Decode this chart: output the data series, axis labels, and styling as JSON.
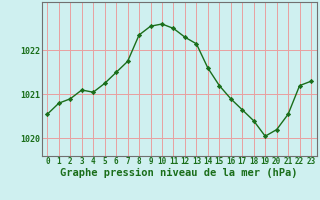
{
  "x": [
    0,
    1,
    2,
    3,
    4,
    5,
    6,
    7,
    8,
    9,
    10,
    11,
    12,
    13,
    14,
    15,
    16,
    17,
    18,
    19,
    20,
    21,
    22,
    23
  ],
  "y": [
    1020.55,
    1020.8,
    1020.9,
    1021.1,
    1021.05,
    1021.25,
    1021.5,
    1021.75,
    1022.35,
    1022.55,
    1022.6,
    1022.5,
    1022.3,
    1022.15,
    1021.6,
    1021.2,
    1020.9,
    1020.65,
    1020.4,
    1020.05,
    1020.2,
    1020.55,
    1021.2,
    1021.3
  ],
  "line_color": "#1a6e1a",
  "marker": "D",
  "marker_size": 2.2,
  "line_width": 1.0,
  "bg_color": "#cff0f0",
  "plot_bg_color": "#cff0f0",
  "grid_color": "#e8a0a0",
  "spine_color": "#707070",
  "xlabel": "Graphe pression niveau de la mer (hPa)",
  "xlabel_color": "#1a6e1a",
  "xlabel_fontsize": 7.5,
  "yticks": [
    1020,
    1021,
    1022
  ],
  "ylim": [
    1019.6,
    1023.1
  ],
  "xlim": [
    -0.5,
    23.5
  ],
  "xtick_labels": [
    "0",
    "1",
    "2",
    "3",
    "4",
    "5",
    "6",
    "7",
    "8",
    "9",
    "10",
    "11",
    "12",
    "13",
    "14",
    "15",
    "16",
    "17",
    "18",
    "19",
    "20",
    "21",
    "22",
    "23"
  ],
  "tick_color": "#1a6e1a",
  "xtick_fontsize": 5.5,
  "ytick_fontsize": 6.0
}
